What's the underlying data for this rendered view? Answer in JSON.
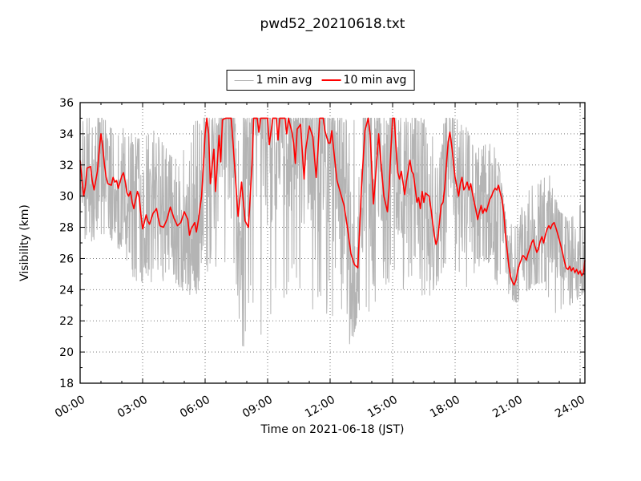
{
  "title": "pwd52_20210618.txt",
  "legend": {
    "items": [
      {
        "label": "1 min avg",
        "color": "#b4b4b4"
      },
      {
        "label": "10 min avg",
        "color": "#ff0000"
      }
    ]
  },
  "colors": {
    "background": "#ffffff",
    "axes": "#000000",
    "grid": "#666666"
  },
  "chart_data": {
    "type": "line",
    "title": "pwd52_20210618.txt",
    "xlabel": "Time on 2021-06-18 (JST)",
    "ylabel": "Visibility (km)",
    "xlim": [
      0,
      24.23
    ],
    "ylim": [
      18,
      36
    ],
    "grid": true,
    "grid_style": "dotted",
    "legend_position": "upper center, outside axes",
    "x_major_ticks_hours": [
      0,
      3,
      6,
      9,
      12,
      15,
      18,
      21,
      24
    ],
    "x_tick_labels": [
      "00:00",
      "03:00",
      "06:00",
      "09:00",
      "12:00",
      "15:00",
      "18:00",
      "21:00",
      "24:00"
    ],
    "x_minor_step_hours": 1,
    "y_major_ticks": [
      18,
      20,
      22,
      24,
      26,
      28,
      30,
      32,
      34,
      36
    ],
    "y_minor_step": 1,
    "series": [
      {
        "name": "1 min avg",
        "color": "#b4b4b4",
        "line_width": 1,
        "note": "1-minute values: high-frequency noise around the 10-min average, capped at 35 km; envelope read from plot",
        "envelope_t_hours": [
          0,
          0.5,
          1,
          1.5,
          2,
          2.5,
          3,
          3.5,
          4,
          4.5,
          5,
          5.5,
          6,
          6.5,
          7,
          7.5,
          8,
          8.5,
          9,
          9.5,
          10,
          10.5,
          11,
          11.5,
          12,
          12.5,
          13,
          13.5,
          14,
          14.5,
          15,
          15.5,
          16,
          16.5,
          17,
          17.5,
          18,
          18.5,
          19,
          19.5,
          20,
          20.5,
          21,
          21.5,
          22,
          22.5,
          23,
          23.5,
          24,
          24.25
        ],
        "envelope_min_km": [
          27.5,
          27,
          27.5,
          27,
          26.5,
          24.5,
          24.5,
          24.5,
          24.3,
          24.5,
          23.6,
          23.5,
          25,
          24,
          24,
          19.9,
          20.5,
          21.5,
          19.9,
          24,
          23,
          23.5,
          22.6,
          21.7,
          22,
          20.3,
          20.3,
          23.3,
          22.1,
          23.5,
          23.8,
          23.5,
          24.5,
          21.8,
          24,
          25.5,
          24.5,
          23.8,
          25.3,
          26,
          23.9,
          23.2,
          23.2,
          24,
          24.5,
          22.8,
          22.2,
          23,
          23.5,
          24
        ],
        "envelope_max_km": [
          35,
          35,
          35,
          35,
          35,
          34,
          33.5,
          34.5,
          33.5,
          32.5,
          34,
          35,
          35,
          35,
          35,
          35,
          35,
          35,
          35,
          35,
          35,
          35,
          35,
          35,
          35,
          35,
          35,
          35,
          35,
          35,
          35,
          35,
          35,
          35,
          34,
          35,
          35,
          34.5,
          33,
          33.5,
          33,
          28,
          28.5,
          30.5,
          31,
          31.5,
          29,
          28.5,
          29.5,
          29.5
        ]
      },
      {
        "name": "10 min avg",
        "color": "#ff0000",
        "line_width": 1.6,
        "x_hours": [
          0,
          0.1,
          0.17,
          0.25,
          0.33,
          0.5,
          0.58,
          0.67,
          0.83,
          0.92,
          1,
          1.08,
          1.17,
          1.25,
          1.33,
          1.5,
          1.58,
          1.67,
          1.75,
          1.83,
          2,
          2.08,
          2.17,
          2.25,
          2.33,
          2.42,
          2.5,
          2.58,
          2.67,
          2.75,
          2.83,
          2.92,
          3,
          3.08,
          3.17,
          3.25,
          3.33,
          3.5,
          3.67,
          3.75,
          3.83,
          4,
          4.17,
          4.33,
          4.5,
          4.67,
          4.83,
          5,
          5.17,
          5.25,
          5.33,
          5.5,
          5.58,
          5.67,
          5.83,
          5.92,
          6,
          6.08,
          6.17,
          6.25,
          6.42,
          6.5,
          6.67,
          6.75,
          6.83,
          7,
          7.25,
          7.33,
          7.58,
          7.75,
          7.92,
          8.08,
          8.25,
          8.33,
          8.5,
          8.58,
          8.67,
          9,
          9.08,
          9.25,
          9.42,
          9.5,
          9.58,
          9.83,
          9.92,
          10,
          10.17,
          10.25,
          10.33,
          10.42,
          10.58,
          10.75,
          10.83,
          11,
          11.17,
          11.33,
          11.42,
          11.5,
          11.67,
          11.75,
          11.92,
          12,
          12.08,
          12.17,
          12.33,
          12.5,
          12.67,
          12.83,
          13,
          13.17,
          13.33,
          13.42,
          13.5,
          13.67,
          13.83,
          13.92,
          14.08,
          14.17,
          14.33,
          14.42,
          14.58,
          14.75,
          14.83,
          14.92,
          15,
          15.08,
          15.17,
          15.25,
          15.33,
          15.42,
          15.58,
          15.67,
          15.83,
          15.92,
          16,
          16.17,
          16.25,
          16.33,
          16.42,
          16.5,
          16.58,
          16.75,
          16.83,
          17,
          17.08,
          17.17,
          17.33,
          17.42,
          17.5,
          17.58,
          17.67,
          17.75,
          17.83,
          17.92,
          18,
          18.17,
          18.25,
          18.33,
          18.42,
          18.5,
          18.58,
          18.67,
          18.75,
          18.83,
          18.92,
          19,
          19.08,
          19.17,
          19.25,
          19.33,
          19.42,
          19.5,
          19.58,
          19.67,
          19.75,
          19.83,
          19.92,
          20,
          20.08,
          20.17,
          20.25,
          20.33,
          20.42,
          20.5,
          20.58,
          20.67,
          20.75,
          20.83,
          20.92,
          21,
          21.08,
          21.17,
          21.25,
          21.33,
          21.42,
          21.5,
          21.58,
          21.67,
          21.75,
          21.83,
          21.92,
          22,
          22.08,
          22.17,
          22.25,
          22.33,
          22.42,
          22.5,
          22.58,
          22.67,
          22.75,
          22.83,
          22.92,
          23,
          23.08,
          23.17,
          23.25,
          23.33,
          23.42,
          23.5,
          23.58,
          23.67,
          23.75,
          23.83,
          23.92,
          24,
          24.08,
          24.17,
          24.23
        ],
        "values_km": [
          32.3,
          30.9,
          30.0,
          30.6,
          31.8,
          31.9,
          31.0,
          30.4,
          31.6,
          33.0,
          34.0,
          33.2,
          32.0,
          31.2,
          30.8,
          30.7,
          31.2,
          30.9,
          31.0,
          30.5,
          31.3,
          31.5,
          30.9,
          30.2,
          30.0,
          30.3,
          29.6,
          29.2,
          29.8,
          30.3,
          30.0,
          28.8,
          27.9,
          28.3,
          28.8,
          28.4,
          28.2,
          28.9,
          29.2,
          28.6,
          28.1,
          28.0,
          28.5,
          29.3,
          28.6,
          28.1,
          28.3,
          29.0,
          28.5,
          27.5,
          27.9,
          28.3,
          27.7,
          28.4,
          30.0,
          32.0,
          34.0,
          35.0,
          34.0,
          30.8,
          33.0,
          30.3,
          33.9,
          32.2,
          34.9,
          35.0,
          35.0,
          33.6,
          28.7,
          30.9,
          28.4,
          28.0,
          32.0,
          35.0,
          35.0,
          34.1,
          35.0,
          35.0,
          33.3,
          35.0,
          35.0,
          33.6,
          35.0,
          35.0,
          34.0,
          35.0,
          34.1,
          33.4,
          32.1,
          34.3,
          34.6,
          31.1,
          33.0,
          34.5,
          33.8,
          31.2,
          33.0,
          35.0,
          35.0,
          34.2,
          33.4,
          33.4,
          34.2,
          33.0,
          31.0,
          30.2,
          29.4,
          28.0,
          26.3,
          25.6,
          25.4,
          28.0,
          30.4,
          34.2,
          35.0,
          34.0,
          29.5,
          31.0,
          34.0,
          32.5,
          30.0,
          29.0,
          30.5,
          33.0,
          35.0,
          35.0,
          33.0,
          31.5,
          31.1,
          31.6,
          30.1,
          31.0,
          32.3,
          31.6,
          31.4,
          29.6,
          29.9,
          29.2,
          30.3,
          29.6,
          30.2,
          30.0,
          29.3,
          27.5,
          26.9,
          27.3,
          29.4,
          29.6,
          30.5,
          32.0,
          33.5,
          34.1,
          33.3,
          32.2,
          31.2,
          30.0,
          30.8,
          31.2,
          30.4,
          30.6,
          30.9,
          30.4,
          30.8,
          30.2,
          29.6,
          29.1,
          28.5,
          29.0,
          29.4,
          28.9,
          29.2,
          29.0,
          29.4,
          29.8,
          30.0,
          30.3,
          30.5,
          30.4,
          30.7,
          30.2,
          29.8,
          29.0,
          27.5,
          26.5,
          25.5,
          24.8,
          24.5,
          24.3,
          24.6,
          25.2,
          25.6,
          25.9,
          26.2,
          26.1,
          25.9,
          26.3,
          26.6,
          27.0,
          27.2,
          26.8,
          26.4,
          26.6,
          27.1,
          27.4,
          27.0,
          27.5,
          27.9,
          28.1,
          27.9,
          28.2,
          28.3,
          28.0,
          27.6,
          27.2,
          26.8,
          26.3,
          25.8,
          25.4,
          25.3,
          25.5,
          25.2,
          25.4,
          25.1,
          25.3,
          25.0,
          25.2,
          24.9,
          25.1,
          25.9
        ]
      }
    ]
  }
}
